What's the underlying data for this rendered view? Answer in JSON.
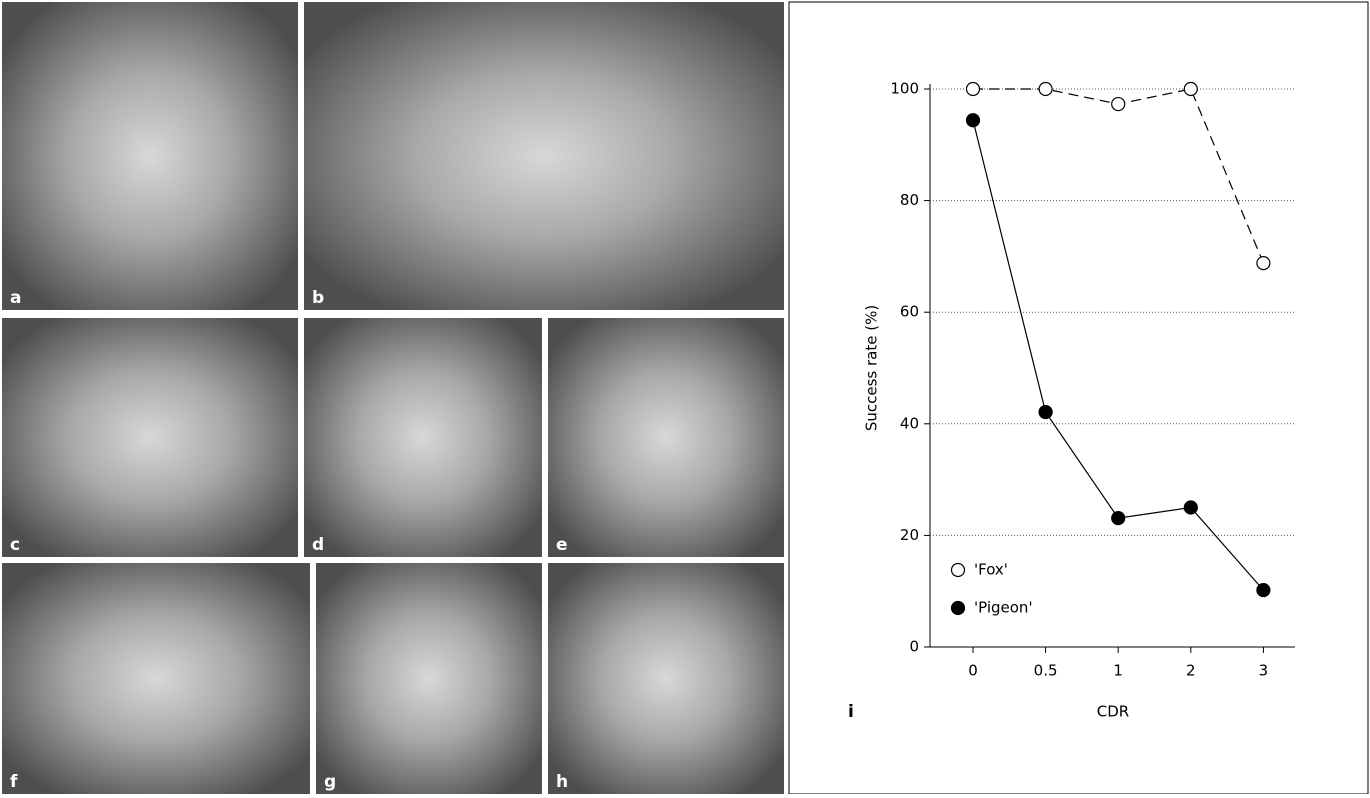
{
  "panels": [
    {
      "label": "a"
    },
    {
      "label": "b"
    },
    {
      "label": "c"
    },
    {
      "label": "d"
    },
    {
      "label": "e"
    },
    {
      "label": "f"
    },
    {
      "label": "g"
    },
    {
      "label": "h"
    }
  ],
  "chart_data": {
    "type": "line",
    "panel_label": "i",
    "x_label": "CDR",
    "y_label": "Success rate (%)",
    "categories": [
      "0",
      "0.5",
      "1",
      "2",
      "3"
    ],
    "series": [
      {
        "name": "'Fox'",
        "color": "#000000",
        "marker": "open",
        "dashed": true,
        "values": [
          100,
          100,
          97.3,
          100,
          68.8
        ]
      },
      {
        "name": "'Pigeon'",
        "color": "#000000",
        "marker": "filled",
        "dashed": false,
        "values": [
          94.4,
          42.1,
          23.1,
          25,
          10.2
        ]
      }
    ],
    "ylim": [
      0,
      100
    ],
    "yticks": [
      0,
      20,
      40,
      60,
      80,
      100
    ],
    "grid": true,
    "legend": "lower left"
  }
}
